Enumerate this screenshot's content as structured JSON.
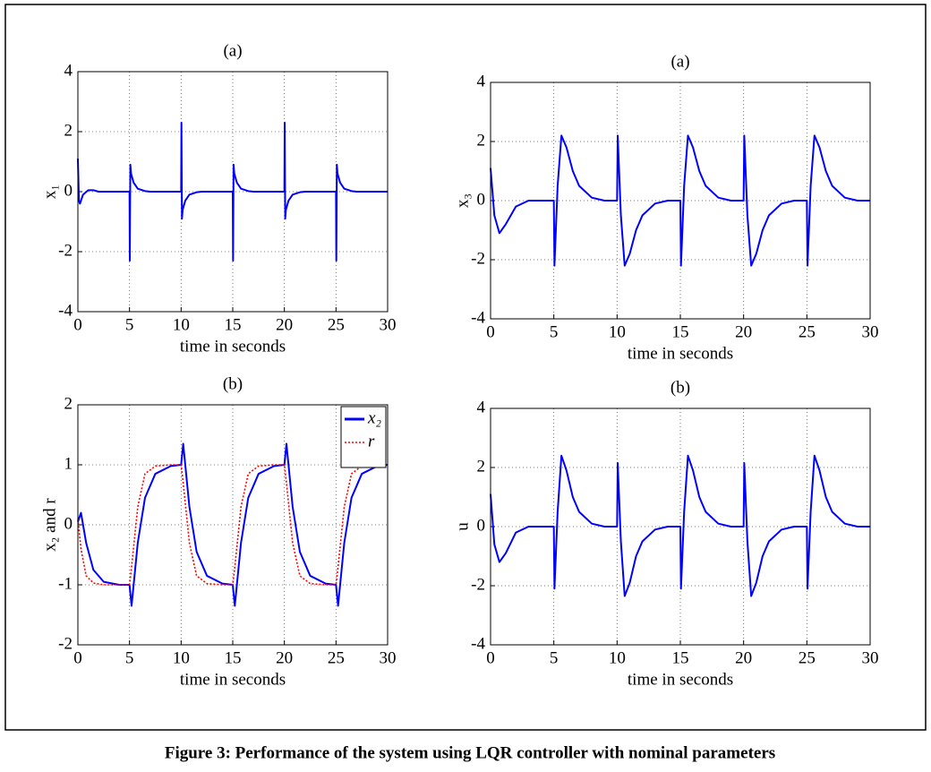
{
  "chart_data": [
    {
      "type": "line",
      "title": "(a)",
      "xlabel": "time in seconds",
      "ylabel": "x₁",
      "xlim": [
        0,
        30
      ],
      "xticks": [
        0,
        5,
        10,
        15,
        20,
        25,
        30
      ],
      "ylim": [
        -4,
        4
      ],
      "yticks": [
        -4,
        -2,
        0,
        2,
        4
      ],
      "grid": true,
      "x": [
        0,
        0.1,
        0.2,
        0.5,
        1,
        1.5,
        2,
        3,
        4,
        5,
        5.03,
        5.08,
        5.15,
        5.4,
        5.8,
        6.5,
        7,
        8,
        9,
        10,
        10.03,
        10.08,
        10.15,
        10.4,
        10.8,
        11.5,
        12,
        13,
        14,
        15,
        15.03,
        15.08,
        15.15,
        15.4,
        15.8,
        16.5,
        17,
        18,
        19,
        20,
        20.03,
        20.08,
        20.15,
        20.4,
        20.8,
        21.5,
        22,
        23,
        24,
        25,
        25.03,
        25.08,
        25.15,
        25.4,
        25.8,
        26.5,
        27,
        28,
        29,
        30
      ],
      "series": [
        {
          "color": "#0000ff",
          "values": [
            1.1,
            -0.3,
            -0.4,
            -0.1,
            0.05,
            0.05,
            0,
            0,
            0,
            0,
            -2.3,
            0.9,
            0.6,
            0.3,
            0.1,
            0.02,
            0,
            0,
            0,
            0,
            2.3,
            -0.9,
            -0.6,
            -0.3,
            -0.1,
            -0.02,
            0,
            0,
            0,
            0,
            -2.3,
            0.9,
            0.6,
            0.3,
            0.1,
            0.02,
            0,
            0,
            0,
            0,
            2.3,
            -0.9,
            -0.6,
            -0.3,
            -0.1,
            -0.02,
            0,
            0,
            0,
            0,
            -2.3,
            0.9,
            0.6,
            0.3,
            0.1,
            0.02,
            0,
            0,
            0,
            0
          ]
        }
      ]
    },
    {
      "type": "line",
      "title": "(a)",
      "xlabel": "time in seconds",
      "ylabel": "x₃",
      "xlim": [
        0,
        30
      ],
      "xticks": [
        0,
        5,
        10,
        15,
        20,
        25,
        30
      ],
      "ylim": [
        -4,
        4
      ],
      "yticks": [
        -4,
        -2,
        0,
        2,
        4
      ],
      "grid": true,
      "x": [
        0,
        0.3,
        0.7,
        1.2,
        2,
        3,
        4,
        5,
        5.05,
        5.3,
        5.6,
        6,
        6.5,
        7,
        8,
        9,
        10,
        10.05,
        10.3,
        10.6,
        11,
        11.5,
        12,
        13,
        14,
        15,
        15.05,
        15.3,
        15.6,
        16,
        16.5,
        17,
        18,
        19,
        20,
        20.05,
        20.3,
        20.6,
        21,
        21.5,
        22,
        23,
        24,
        25,
        25.05,
        25.3,
        25.6,
        26,
        26.5,
        27,
        28,
        29,
        30
      ],
      "series": [
        {
          "color": "#0000ff",
          "values": [
            1.1,
            -0.5,
            -1.1,
            -0.8,
            -0.2,
            0,
            0,
            0,
            -2.2,
            0.5,
            2.2,
            1.8,
            1.0,
            0.5,
            0.1,
            0,
            0,
            2.2,
            -0.5,
            -2.2,
            -1.8,
            -1.0,
            -0.5,
            -0.1,
            0,
            0,
            -2.2,
            0.5,
            2.2,
            1.8,
            1.0,
            0.5,
            0.1,
            0,
            0,
            2.2,
            -0.5,
            -2.2,
            -1.8,
            -1.0,
            -0.5,
            -0.1,
            0,
            0,
            -2.2,
            0.5,
            2.2,
            1.8,
            1.0,
            0.5,
            0.1,
            0,
            0
          ]
        }
      ]
    },
    {
      "type": "line",
      "title": "(b)",
      "xlabel": "time in seconds",
      "ylabel": "x₂ and r",
      "xlim": [
        0,
        30
      ],
      "xticks": [
        0,
        5,
        10,
        15,
        20,
        25,
        30
      ],
      "ylim": [
        -2,
        2
      ],
      "yticks": [
        -2,
        -1,
        0,
        1,
        2
      ],
      "grid": true,
      "legend": "upper right",
      "x": [
        0,
        0.3,
        0.8,
        1.5,
        2.5,
        4,
        5,
        5.2,
        5.8,
        6.5,
        7.5,
        9,
        10,
        10.2,
        10.8,
        11.5,
        12.5,
        14,
        15,
        15.2,
        15.8,
        16.5,
        17.5,
        19,
        20,
        20.2,
        20.8,
        21.5,
        22.5,
        24,
        25,
        25.2,
        25.8,
        26.5,
        27.5,
        29,
        30
      ],
      "series": [
        {
          "name": "x₂",
          "color": "#0000ff",
          "values": [
            0.05,
            0.2,
            -0.3,
            -0.75,
            -0.95,
            -1,
            -1,
            -1.35,
            -0.3,
            0.45,
            0.85,
            0.98,
            1,
            1.35,
            0.3,
            -0.45,
            -0.85,
            -0.98,
            -1,
            -1.35,
            -0.3,
            0.45,
            0.85,
            0.98,
            1,
            1.35,
            0.3,
            -0.45,
            -0.85,
            -0.98,
            -1,
            -1.35,
            -0.3,
            0.45,
            0.85,
            0.98,
            1
          ]
        },
        {
          "name": "r",
          "color": "#ff0000",
          "dash": true,
          "values": [
            0.1,
            -0.4,
            -0.85,
            -0.97,
            -1,
            -1,
            -1,
            -0.7,
            0.3,
            0.85,
            0.98,
            1,
            1,
            0.7,
            -0.3,
            -0.85,
            -0.98,
            -1,
            -1,
            -0.7,
            0.3,
            0.85,
            0.98,
            1,
            1,
            0.7,
            -0.3,
            -0.85,
            -0.98,
            -1,
            -1,
            -0.7,
            0.3,
            0.85,
            0.98,
            1,
            1
          ]
        }
      ]
    },
    {
      "type": "line",
      "title": "(b)",
      "xlabel": "time in seconds",
      "ylabel": "u",
      "xlim": [
        0,
        30
      ],
      "xticks": [
        0,
        5,
        10,
        15,
        20,
        25,
        30
      ],
      "ylim": [
        -4,
        4
      ],
      "yticks": [
        -4,
        -2,
        0,
        2,
        4
      ],
      "grid": true,
      "x": [
        0,
        0.3,
        0.7,
        1.2,
        2,
        3,
        4,
        5,
        5.05,
        5.3,
        5.6,
        6,
        6.5,
        7,
        8,
        9,
        10,
        10.05,
        10.3,
        10.6,
        11,
        11.5,
        12,
        13,
        14,
        15,
        15.05,
        15.3,
        15.6,
        16,
        16.5,
        17,
        18,
        19,
        20,
        20.05,
        20.3,
        20.6,
        21,
        21.5,
        22,
        23,
        24,
        25,
        25.05,
        25.3,
        25.6,
        26,
        26.5,
        27,
        28,
        29,
        30
      ],
      "series": [
        {
          "color": "#0000ff",
          "values": [
            1.1,
            -0.6,
            -1.2,
            -0.9,
            -0.2,
            0,
            0,
            0,
            -2.1,
            0.5,
            2.4,
            1.9,
            1.0,
            0.5,
            0.1,
            0,
            0,
            2.15,
            -0.5,
            -2.35,
            -1.9,
            -1.0,
            -0.5,
            -0.1,
            0,
            0,
            -2.1,
            0.5,
            2.4,
            1.9,
            1.0,
            0.5,
            0.1,
            0,
            0,
            2.15,
            -0.5,
            -2.35,
            -1.9,
            -1.0,
            -0.5,
            -0.1,
            0,
            0,
            -2.1,
            0.5,
            2.4,
            1.9,
            1.0,
            0.5,
            0.1,
            0,
            0
          ]
        }
      ]
    }
  ],
  "caption": "Figure 3: Performance of the system using LQR controller with nominal parameters"
}
